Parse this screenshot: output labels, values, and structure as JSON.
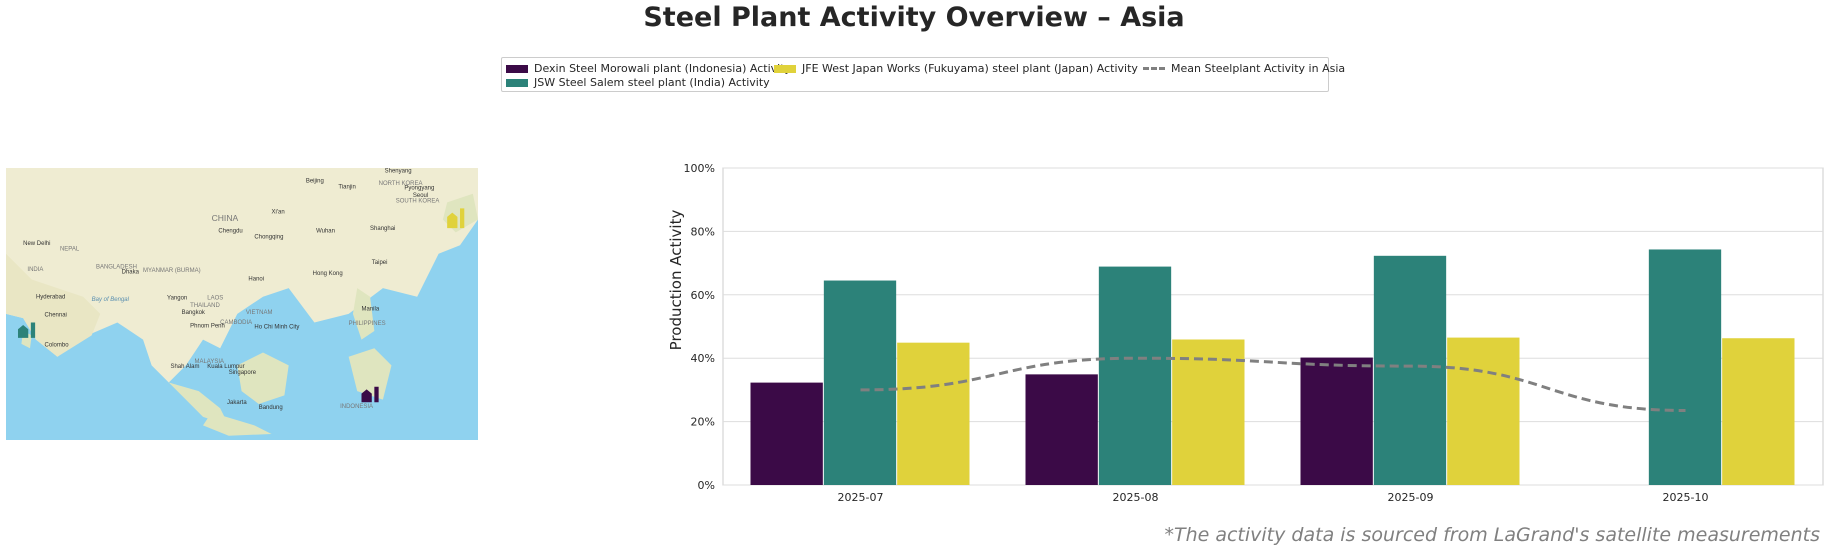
{
  "title": "Steel Plant Activity Overview – Asia",
  "footnote": "*The activity data is sourced from LaGrand's satellite measurements",
  "legend": [
    {
      "label": "Dexin Steel Morowali plant (Indonesia) Activity",
      "color": "#3b0a47",
      "kind": "bar"
    },
    {
      "label": "JSW Steel Salem steel plant (India) Activity",
      "color": "#2c8279",
      "kind": "bar"
    },
    {
      "label": "JFE West Japan Works (Fukuyama) steel plant (Japan) Activity",
      "color": "#e0d23b",
      "kind": "bar"
    },
    {
      "label": "Mean Steelplant Activity in Asia",
      "color": "#808080",
      "kind": "dashed-line"
    }
  ],
  "map": {
    "labels": [
      "CHINA",
      "INDIA",
      "NEPAL",
      "BANGLADESH",
      "MYANMAR (BURMA)",
      "THAILAND",
      "LAOS",
      "VIETNAM",
      "CAMBODIA",
      "MALAYSIA",
      "PHILIPPINES",
      "INDONESIA",
      "NORTH KOREA",
      "SOUTH KOREA",
      "Beijing",
      "Tianjin",
      "Shenyang",
      "Pyongyang",
      "Seoul",
      "Xi'an",
      "Chengdu",
      "Chongqing",
      "Wuhan",
      "Shanghai",
      "Taipei",
      "Hong Kong",
      "Hanoi",
      "New Delhi",
      "Dhaka",
      "Yangon",
      "Hyderabad",
      "Chennai",
      "Colombo",
      "Bangkok",
      "Phnom Penh",
      "Ho Chi Minh City",
      "Manila",
      "Kuala Lumpur",
      "Shah Alam",
      "Singapore",
      "Jakarta",
      "Bandung",
      "Bay of Bengal"
    ],
    "markers": [
      {
        "plant": "JSW Steel Salem",
        "color": "#2c8279",
        "icon": "factory-icon"
      },
      {
        "plant": "Dexin Steel Morowali",
        "color": "#3b0a47",
        "icon": "factory-icon"
      },
      {
        "plant": "JFE West Japan Works",
        "color": "#e0d23b",
        "icon": "factory-icon"
      }
    ]
  },
  "chart_data": {
    "type": "bar",
    "title": "",
    "xlabel": "",
    "ylabel": "Production Activity",
    "ylim": [
      0,
      100
    ],
    "yticks": [
      "0%",
      "20%",
      "40%",
      "60%",
      "80%",
      "100%"
    ],
    "grid": true,
    "legend_placement": "top-center",
    "categories": [
      "2025-07",
      "2025-08",
      "2025-09",
      "2025-10"
    ],
    "series": [
      {
        "name": "Dexin Steel Morowali plant (Indonesia) Activity",
        "color": "#3b0a47",
        "values": [
          32.3,
          34.9,
          40.2,
          null
        ]
      },
      {
        "name": "JSW Steel Salem steel plant (India) Activity",
        "color": "#2c8279",
        "values": [
          64.5,
          68.9,
          72.3,
          74.3
        ]
      },
      {
        "name": "JFE West Japan Works (Fukuyama) steel plant (Japan) Activity",
        "color": "#e0d23b",
        "values": [
          44.9,
          45.9,
          46.5,
          46.3
        ]
      }
    ],
    "line": {
      "name": "Mean Steelplant Activity in Asia",
      "color": "#808080",
      "style": "dashed",
      "values": [
        30.0,
        40.0,
        37.5,
        23.5
      ]
    }
  }
}
